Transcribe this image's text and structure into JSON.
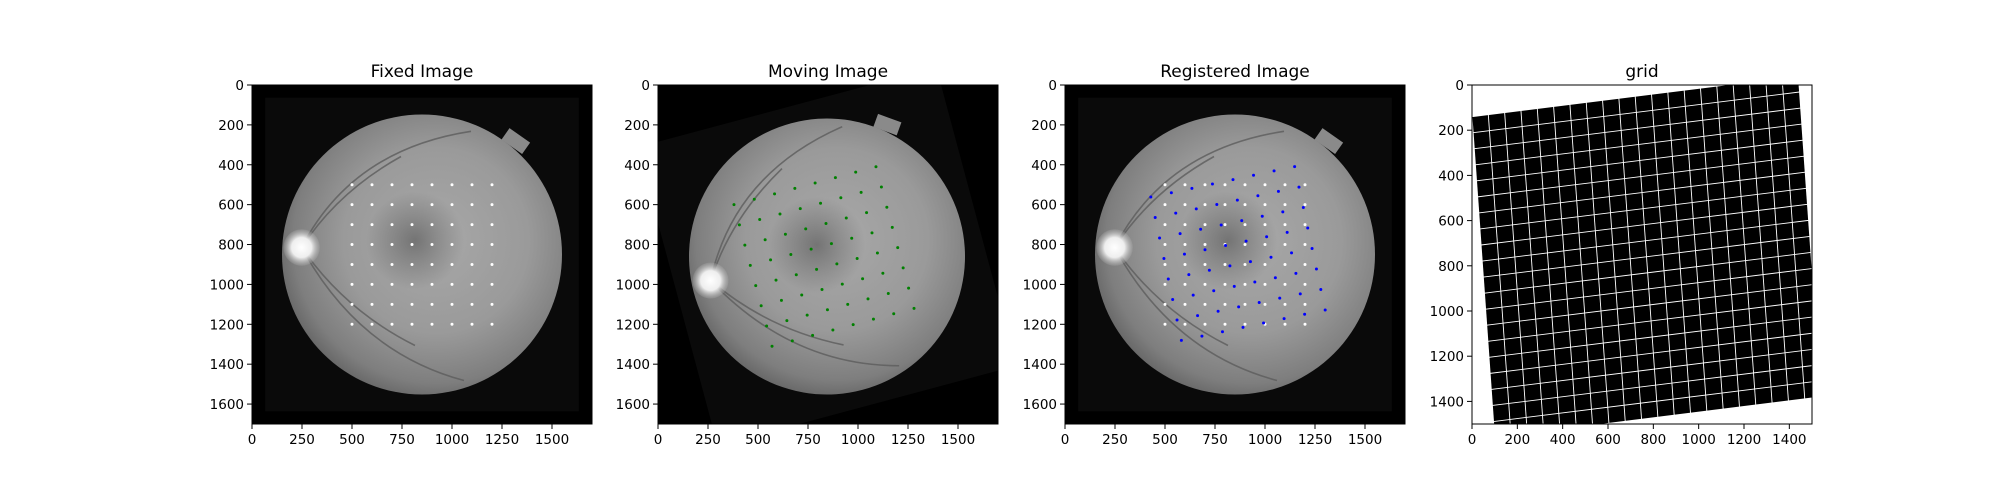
{
  "figure": {
    "background": "#ffffff"
  },
  "chart_data": [
    {
      "type": "image",
      "title": "Fixed Image",
      "image_kind": "fundus",
      "xlim": [
        0,
        1700
      ],
      "ylim": [
        1700,
        0
      ],
      "x_ticks": [
        0,
        250,
        500,
        750,
        1000,
        1250,
        1500
      ],
      "y_ticks": [
        0,
        200,
        400,
        600,
        800,
        1000,
        1200,
        1400,
        1600
      ],
      "fundus": {
        "cx": 850,
        "cy": 850,
        "r": 700,
        "rotation_deg": 0
      },
      "point_sets": [
        {
          "color": "#ffffff",
          "points": "grid-500-1200-step-100",
          "x0": 500,
          "x1": 1200,
          "y0": 500,
          "y1": 1200,
          "step": 100,
          "rotation_deg": 0,
          "scale": 1.0,
          "cx": 850,
          "cy": 850,
          "dx": 0,
          "dy": 0
        }
      ]
    },
    {
      "type": "image",
      "title": "Moving Image",
      "image_kind": "fundus",
      "xlim": [
        0,
        1700
      ],
      "ylim": [
        1700,
        0
      ],
      "x_ticks": [
        0,
        250,
        500,
        750,
        1000,
        1250,
        1500
      ],
      "y_ticks": [
        0,
        200,
        400,
        600,
        800,
        1000,
        1200,
        1400,
        1600
      ],
      "fundus": {
        "cx": 845,
        "cy": 860,
        "r": 690,
        "rotation_deg": 15
      },
      "point_sets": [
        {
          "color": "#008000",
          "points": "grid-rotated",
          "x0": 500,
          "x1": 1200,
          "y0": 500,
          "y1": 1200,
          "step": 100,
          "rotation_deg": 15,
          "scale": 1.05,
          "cx": 850,
          "cy": 850,
          "dx": -20,
          "dy": 10
        }
      ]
    },
    {
      "type": "image",
      "title": "Registered Image",
      "image_kind": "fundus",
      "xlim": [
        0,
        1700
      ],
      "ylim": [
        1700,
        0
      ],
      "x_ticks": [
        0,
        250,
        500,
        750,
        1000,
        1250,
        1500
      ],
      "y_ticks": [
        0,
        200,
        400,
        600,
        800,
        1000,
        1200,
        1400,
        1600
      ],
      "fundus": {
        "cx": 850,
        "cy": 850,
        "r": 700,
        "rotation_deg": 0
      },
      "point_sets": [
        {
          "color": "#ffffff",
          "points": "grid-500-1200-step-100",
          "x0": 500,
          "x1": 1200,
          "y0": 500,
          "y1": 1200,
          "step": 100,
          "rotation_deg": 0,
          "scale": 1.0,
          "cx": 850,
          "cy": 850,
          "dx": 0,
          "dy": 0
        },
        {
          "color": "#0000ff",
          "points": "grid-rotated",
          "x0": 500,
          "x1": 1200,
          "y0": 500,
          "y1": 1200,
          "step": 100,
          "rotation_deg": 12,
          "scale": 1.05,
          "cx": 850,
          "cy": 850,
          "dx": 15,
          "dy": -5
        }
      ]
    },
    {
      "type": "image",
      "title": "grid",
      "image_kind": "deformation-grid",
      "xlim": [
        0,
        1500
      ],
      "ylim": [
        1500,
        0
      ],
      "x_ticks": [
        0,
        200,
        400,
        600,
        800,
        1000,
        1200,
        1400
      ],
      "y_ticks": [
        0,
        200,
        400,
        600,
        800,
        1000,
        1200,
        1400
      ],
      "grid": {
        "background": "#000000",
        "line_color": "#ffffff",
        "corners": [
          [
            0,
            140
          ],
          [
            1440,
            -40
          ],
          [
            1540,
            1380
          ],
          [
            100,
            1560
          ]
        ],
        "divisions": 20
      }
    }
  ]
}
